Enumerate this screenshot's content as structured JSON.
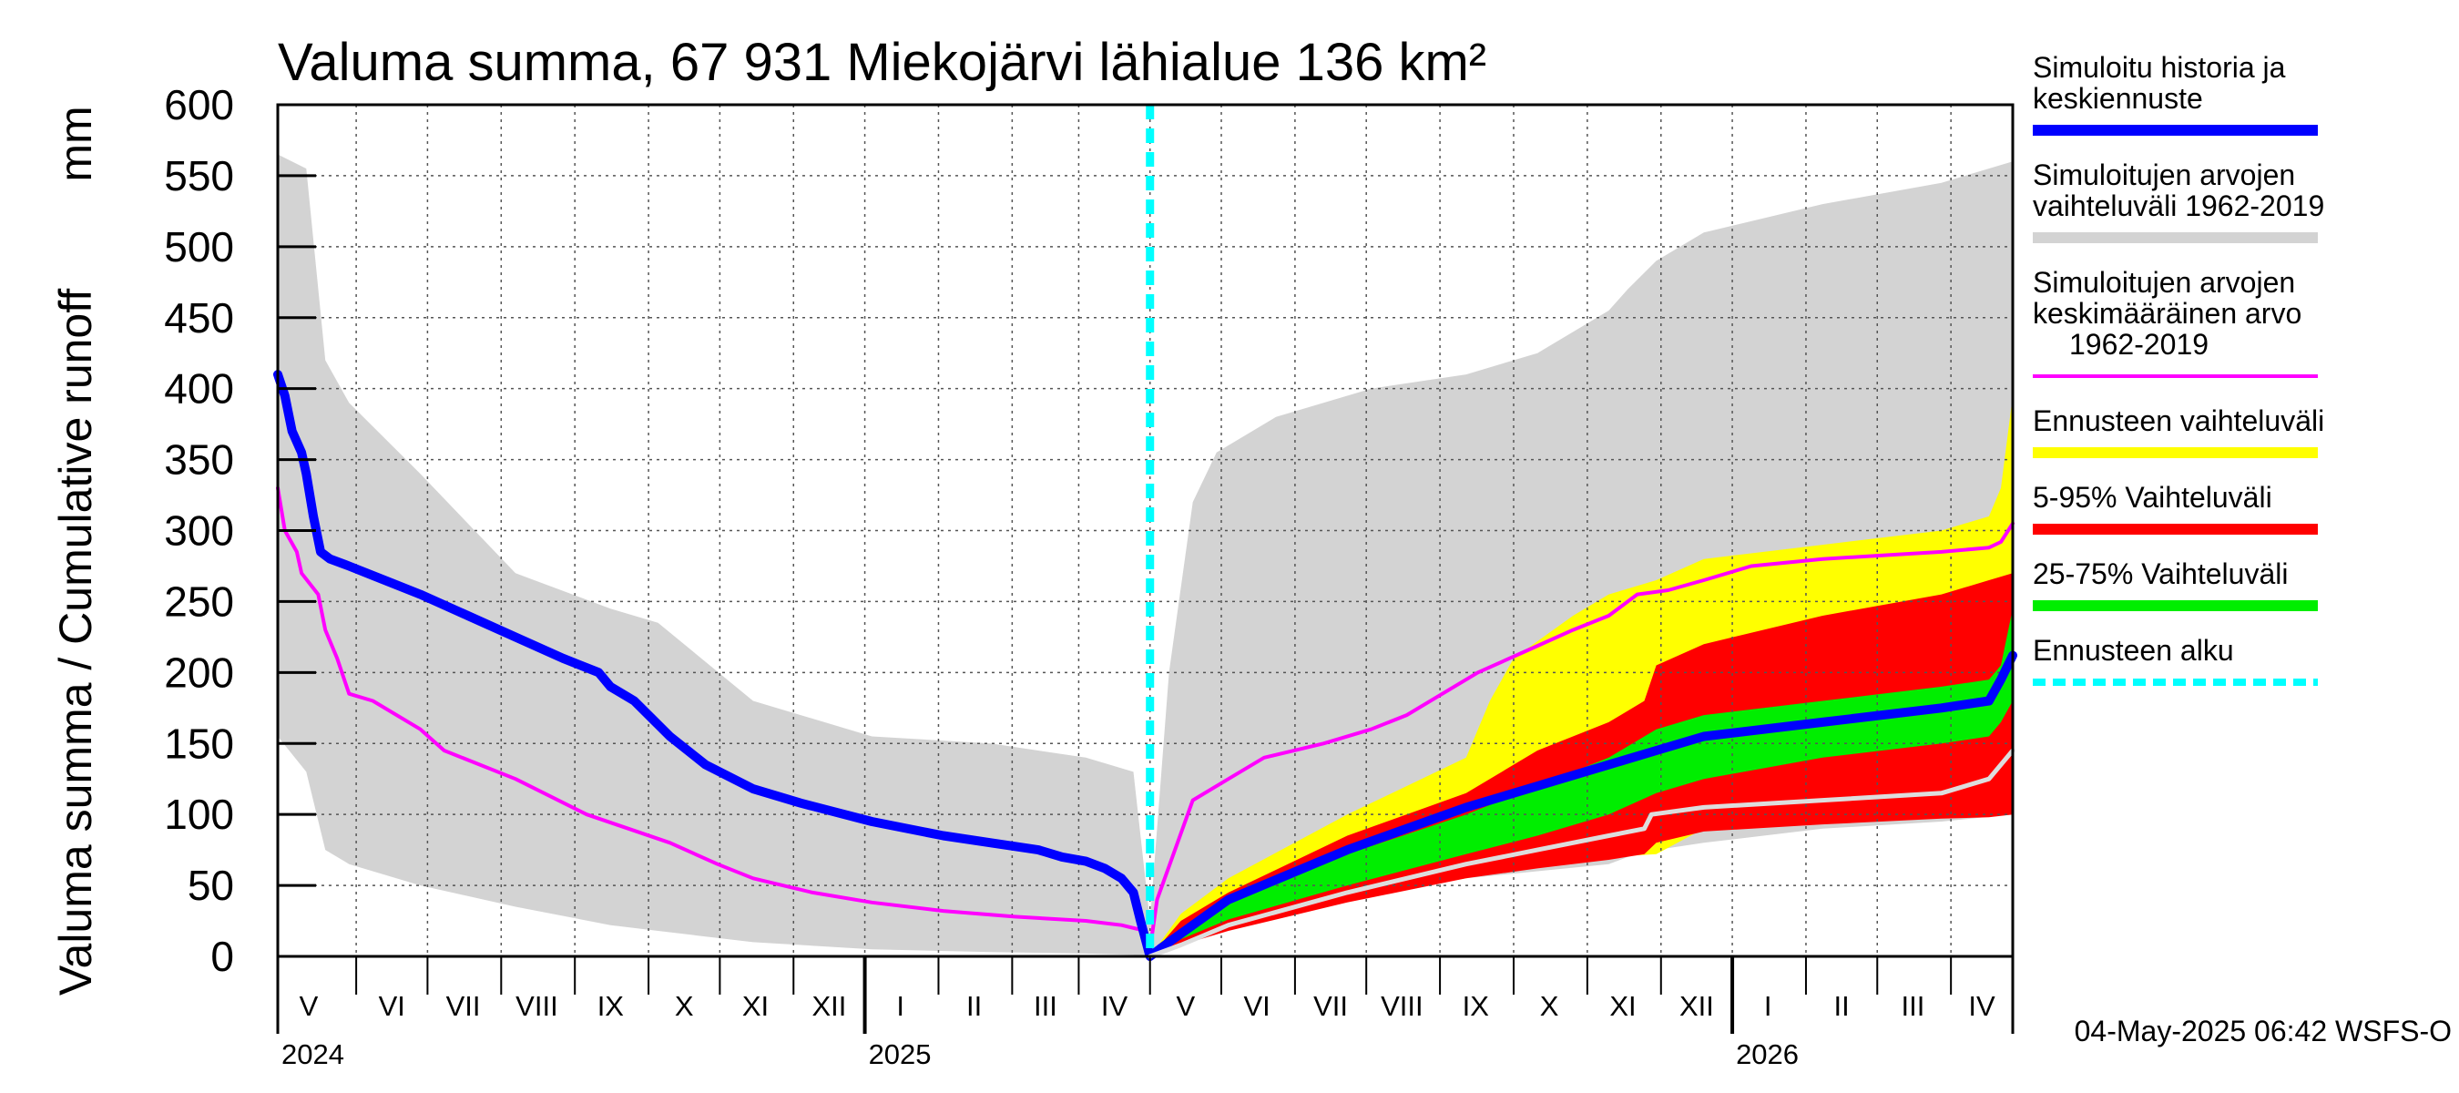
{
  "chart_data": {
    "type": "area",
    "title": "Valuma summa, 67 931 Miekojärvi lähialue 136 km²",
    "ylabel": "Valuma summa / Cumulative runoff",
    "yunit": "mm",
    "ylim": [
      0,
      600
    ],
    "yticks": [
      0,
      50,
      100,
      150,
      200,
      250,
      300,
      350,
      400,
      450,
      500,
      550,
      600
    ],
    "xlim_days": [
      0,
      730
    ],
    "forecast_start_day": 367,
    "x_note": "days since 2024-04-28",
    "month_bounds_days": [
      0,
      33,
      63,
      94,
      125,
      156,
      186,
      217,
      247,
      278,
      309,
      337,
      367,
      397,
      428,
      458,
      489,
      520,
      551,
      582,
      612,
      643,
      673,
      704,
      730
    ],
    "month_labels": [
      {
        "label": "V",
        "day": 13
      },
      {
        "label": "VI",
        "day": 48
      },
      {
        "label": "VII",
        "day": 78
      },
      {
        "label": "VIII",
        "day": 109
      },
      {
        "label": "IX",
        "day": 140
      },
      {
        "label": "X",
        "day": 171
      },
      {
        "label": "XI",
        "day": 201
      },
      {
        "label": "XII",
        "day": 232
      },
      {
        "label": "I",
        "day": 262
      },
      {
        "label": "II",
        "day": 293
      },
      {
        "label": "III",
        "day": 323
      },
      {
        "label": "IV",
        "day": 352
      },
      {
        "label": "V",
        "day": 382
      },
      {
        "label": "VI",
        "day": 412
      },
      {
        "label": "VII",
        "day": 443
      },
      {
        "label": "VIII",
        "day": 473
      },
      {
        "label": "IX",
        "day": 504
      },
      {
        "label": "X",
        "day": 535
      },
      {
        "label": "XI",
        "day": 566
      },
      {
        "label": "XII",
        "day": 597
      },
      {
        "label": "I",
        "day": 627
      },
      {
        "label": "II",
        "day": 658
      },
      {
        "label": "III",
        "day": 688
      },
      {
        "label": "IV",
        "day": 717
      }
    ],
    "year_labels": [
      {
        "label": "2024",
        "day": 0
      },
      {
        "label": "2025",
        "day": 247
      },
      {
        "label": "2026",
        "day": 612
      }
    ],
    "year_bounds_days": [
      247,
      612
    ],
    "series": [
      {
        "name": "Simuloitujen arvojen vaihteluväli 1962-2019",
        "kind": "band",
        "color": "#d3d3d3",
        "x": [
          0,
          12,
          20,
          30,
          60,
          100,
          140,
          160,
          200,
          250,
          300,
          340,
          360,
          367,
          375,
          385,
          395,
          420,
          460,
          500,
          530,
          560,
          568,
          580,
          600,
          650,
          700,
          730
        ],
        "upper": [
          565,
          555,
          420,
          390,
          340,
          270,
          245,
          235,
          180,
          155,
          150,
          140,
          130,
          25,
          200,
          320,
          355,
          380,
          400,
          410,
          425,
          455,
          470,
          490,
          510,
          530,
          545,
          560
        ],
        "lower": [
          155,
          130,
          75,
          65,
          50,
          35,
          22,
          18,
          10,
          5,
          3,
          2,
          1,
          0,
          5,
          15,
          25,
          35,
          45,
          55,
          60,
          65,
          70,
          75,
          80,
          90,
          95,
          100
        ]
      },
      {
        "name": "Ennusteen vaihteluväli",
        "kind": "band",
        "color": "#ffff00",
        "x": [
          367,
          380,
          400,
          450,
          500,
          510,
          520,
          545,
          560,
          580,
          600,
          650,
          700,
          720,
          725,
          730
        ],
        "upper": [
          0,
          30,
          55,
          100,
          140,
          180,
          210,
          240,
          255,
          265,
          280,
          290,
          300,
          310,
          330,
          395
        ],
        "lower": [
          0,
          10,
          20,
          40,
          55,
          60,
          65,
          70,
          70,
          72,
          90,
          95,
          98,
          99,
          100,
          100
        ]
      },
      {
        "name": "5-95% Vaihteluväli",
        "kind": "band",
        "color": "#ff0000",
        "x": [
          367,
          380,
          400,
          450,
          500,
          530,
          560,
          575,
          580,
          600,
          650,
          700,
          720,
          730
        ],
        "upper": [
          0,
          25,
          45,
          85,
          115,
          145,
          165,
          180,
          205,
          220,
          240,
          255,
          265,
          270
        ],
        "lower": [
          0,
          8,
          18,
          38,
          55,
          62,
          68,
          72,
          80,
          88,
          93,
          97,
          98,
          100
        ]
      },
      {
        "name": "25-75% Vaihteluväli",
        "kind": "band",
        "color": "#00ee00",
        "x": [
          367,
          380,
          400,
          450,
          500,
          530,
          560,
          580,
          600,
          650,
          700,
          720,
          725,
          730
        ],
        "upper": [
          0,
          18,
          38,
          72,
          100,
          120,
          140,
          160,
          170,
          180,
          190,
          195,
          205,
          245
        ],
        "lower": [
          0,
          12,
          26,
          50,
          72,
          85,
          100,
          115,
          125,
          140,
          150,
          155,
          165,
          180
        ]
      },
      {
        "name": "Simuloitujen arvojen keskimääräinen arvo 1962-2019",
        "kind": "line",
        "color": "#ff00ff",
        "x": [
          0,
          3,
          8,
          10,
          17,
          20,
          25,
          30,
          40,
          60,
          70,
          100,
          130,
          165,
          185,
          200,
          225,
          250,
          280,
          310,
          340,
          355,
          365,
          367,
          370,
          385,
          400,
          415,
          440,
          460,
          475,
          490,
          505,
          525,
          545,
          560,
          572,
          585,
          600,
          620,
          650,
          680,
          700,
          720,
          725,
          730
        ],
        "values": [
          330,
          300,
          285,
          270,
          255,
          230,
          210,
          185,
          180,
          160,
          145,
          125,
          100,
          80,
          65,
          55,
          45,
          38,
          32,
          28,
          25,
          22,
          18,
          5,
          40,
          110,
          125,
          140,
          150,
          160,
          170,
          185,
          200,
          215,
          230,
          240,
          255,
          258,
          265,
          275,
          280,
          283,
          285,
          288,
          292,
          305
        ]
      },
      {
        "name": "Simuloitu historia ja keskiennuste",
        "kind": "line",
        "color": "#0000ff",
        "x": [
          0,
          3,
          6,
          10,
          12,
          15,
          18,
          22,
          30,
          60,
          80,
          100,
          120,
          135,
          140,
          150,
          165,
          180,
          200,
          220,
          250,
          280,
          300,
          320,
          330,
          340,
          348,
          355,
          360,
          363,
          367,
          375,
          400,
          450,
          500,
          530,
          560,
          580,
          600,
          650,
          700,
          720,
          725,
          730
        ],
        "values": [
          410,
          395,
          370,
          355,
          340,
          310,
          285,
          280,
          275,
          255,
          240,
          225,
          210,
          200,
          190,
          180,
          155,
          135,
          118,
          108,
          95,
          85,
          80,
          75,
          70,
          67,
          62,
          55,
          45,
          25,
          0,
          10,
          40,
          75,
          105,
          120,
          135,
          145,
          155,
          165,
          175,
          180,
          195,
          212
        ]
      },
      {
        "name": "Ennusteen alku",
        "kind": "vline",
        "color": "#00ffff",
        "x": [
          367
        ]
      },
      {
        "name": "light median (unlabeled)",
        "kind": "line",
        "color": "#dddddd",
        "x": [
          367,
          380,
          400,
          450,
          500,
          530,
          560,
          575,
          578,
          600,
          650,
          700,
          720,
          730
        ],
        "values": [
          0,
          8,
          22,
          45,
          65,
          75,
          85,
          90,
          100,
          105,
          110,
          115,
          125,
          145
        ]
      }
    ]
  },
  "legend": [
    {
      "lines": [
        "Simuloitu historia ja",
        "keskiennuste"
      ],
      "color": "#0000ff",
      "style": "thick"
    },
    {
      "lines": [
        "Simuloitujen arvojen",
        "vaihteluväli 1962-2019"
      ],
      "color": "#d3d3d3",
      "style": "thick"
    },
    {
      "lines": [
        "Simuloitujen arvojen",
        "keskimääräinen arvo",
        "1962-2019"
      ],
      "color": "#ff00ff",
      "style": "thin"
    },
    {
      "lines": [
        "Ennusteen vaihteluväli"
      ],
      "color": "#ffff00",
      "style": "thick"
    },
    {
      "lines": [
        "5-95% Vaihteluväli"
      ],
      "color": "#ff0000",
      "style": "thick"
    },
    {
      "lines": [
        "25-75% Vaihteluväli"
      ],
      "color": "#00ee00",
      "style": "thick"
    },
    {
      "lines": [
        "Ennusteen alku"
      ],
      "color": "#00ffff",
      "style": "dashed"
    }
  ],
  "footer": "04-May-2025 06:42 WSFS-O"
}
